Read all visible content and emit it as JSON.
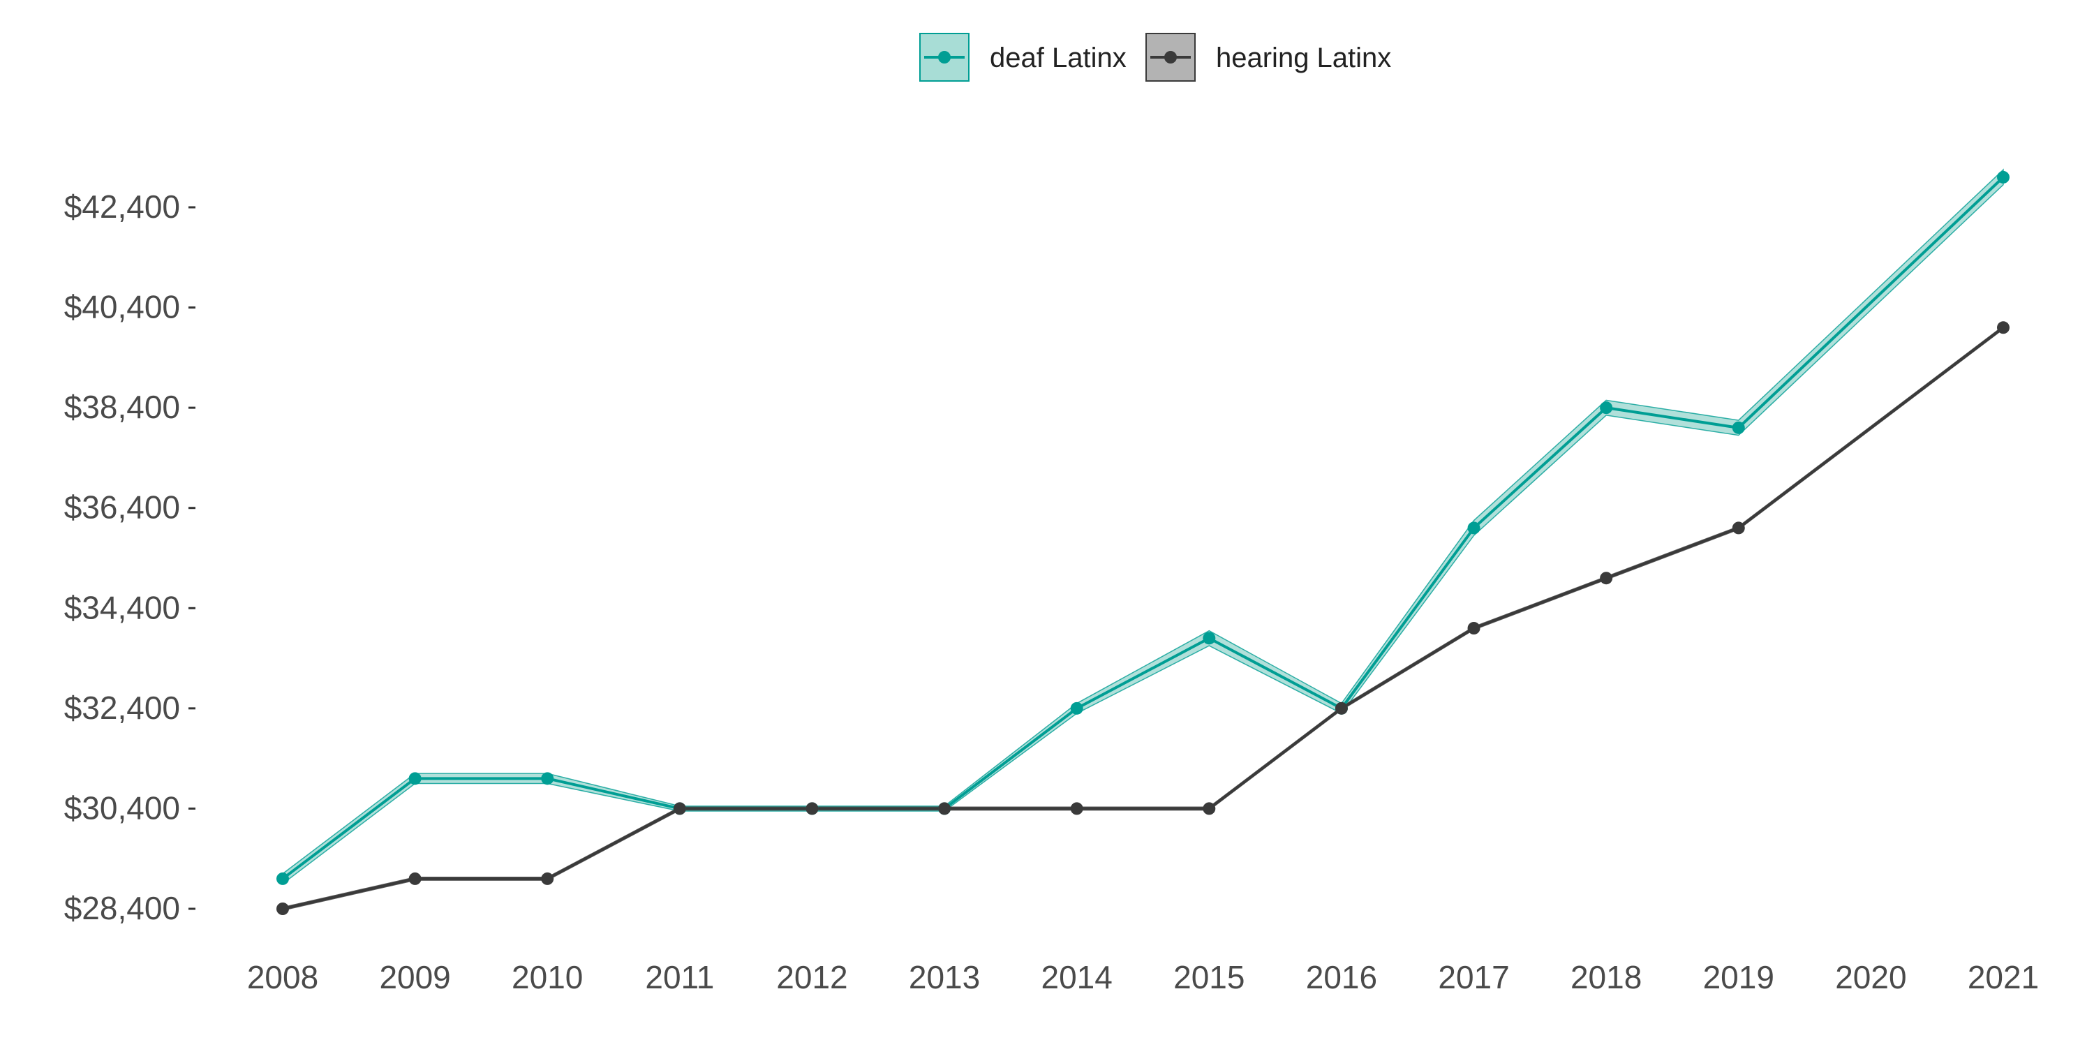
{
  "chart_data": {
    "type": "line",
    "title": "",
    "xlabel": "",
    "ylabel": "",
    "grid": false,
    "legend_position": "top",
    "x": [
      "2008",
      "2009",
      "2010",
      "2011",
      "2012",
      "2013",
      "2014",
      "2015",
      "2016",
      "2017",
      "2018",
      "2019",
      "2020",
      "2021"
    ],
    "y_ticks": [
      28400,
      30400,
      32400,
      34400,
      36400,
      38400,
      40400,
      42400
    ],
    "y_tick_labels": [
      "$28,400",
      "$30,400",
      "$32,400",
      "$34,400",
      "$36,400",
      "$38,400",
      "$40,400",
      "$42,400"
    ],
    "ylim": [
      28000,
      43200
    ],
    "series": [
      {
        "name": "deaf Latinx",
        "color": "#009e94",
        "band_fill": "#a8ddd6",
        "values": [
          29000,
          31000,
          31000,
          30400,
          30400,
          30400,
          32400,
          33800,
          32400,
          36000,
          38400,
          38000,
          null,
          43000
        ],
        "band": [
          [
            28900,
            29100
          ],
          [
            30900,
            31100
          ],
          [
            30900,
            31100
          ],
          [
            30350,
            30450
          ],
          [
            30350,
            30450
          ],
          [
            30350,
            30450
          ],
          [
            32300,
            32500
          ],
          [
            33650,
            33950
          ],
          [
            32300,
            32500
          ],
          [
            35850,
            36150
          ],
          [
            38250,
            38550
          ],
          [
            37850,
            38150
          ],
          [
            null,
            null
          ],
          [
            42850,
            43150
          ]
        ]
      },
      {
        "name": "hearing Latinx",
        "color": "#3a3a3a",
        "band_fill": "#b3b3b3",
        "values": [
          28400,
          29000,
          29000,
          30400,
          30400,
          30400,
          30400,
          30400,
          32400,
          34000,
          35000,
          36000,
          null,
          40000
        ],
        "band": [
          [
            28370,
            28430
          ],
          [
            28970,
            29030
          ],
          [
            28970,
            29030
          ],
          [
            30370,
            30430
          ],
          [
            30370,
            30430
          ],
          [
            30370,
            30430
          ],
          [
            30370,
            30430
          ],
          [
            30370,
            30430
          ],
          [
            32370,
            32430
          ],
          [
            33970,
            34030
          ],
          [
            34970,
            35030
          ],
          [
            35970,
            36030
          ],
          [
            null,
            null
          ],
          [
            39970,
            40030
          ]
        ]
      }
    ]
  }
}
